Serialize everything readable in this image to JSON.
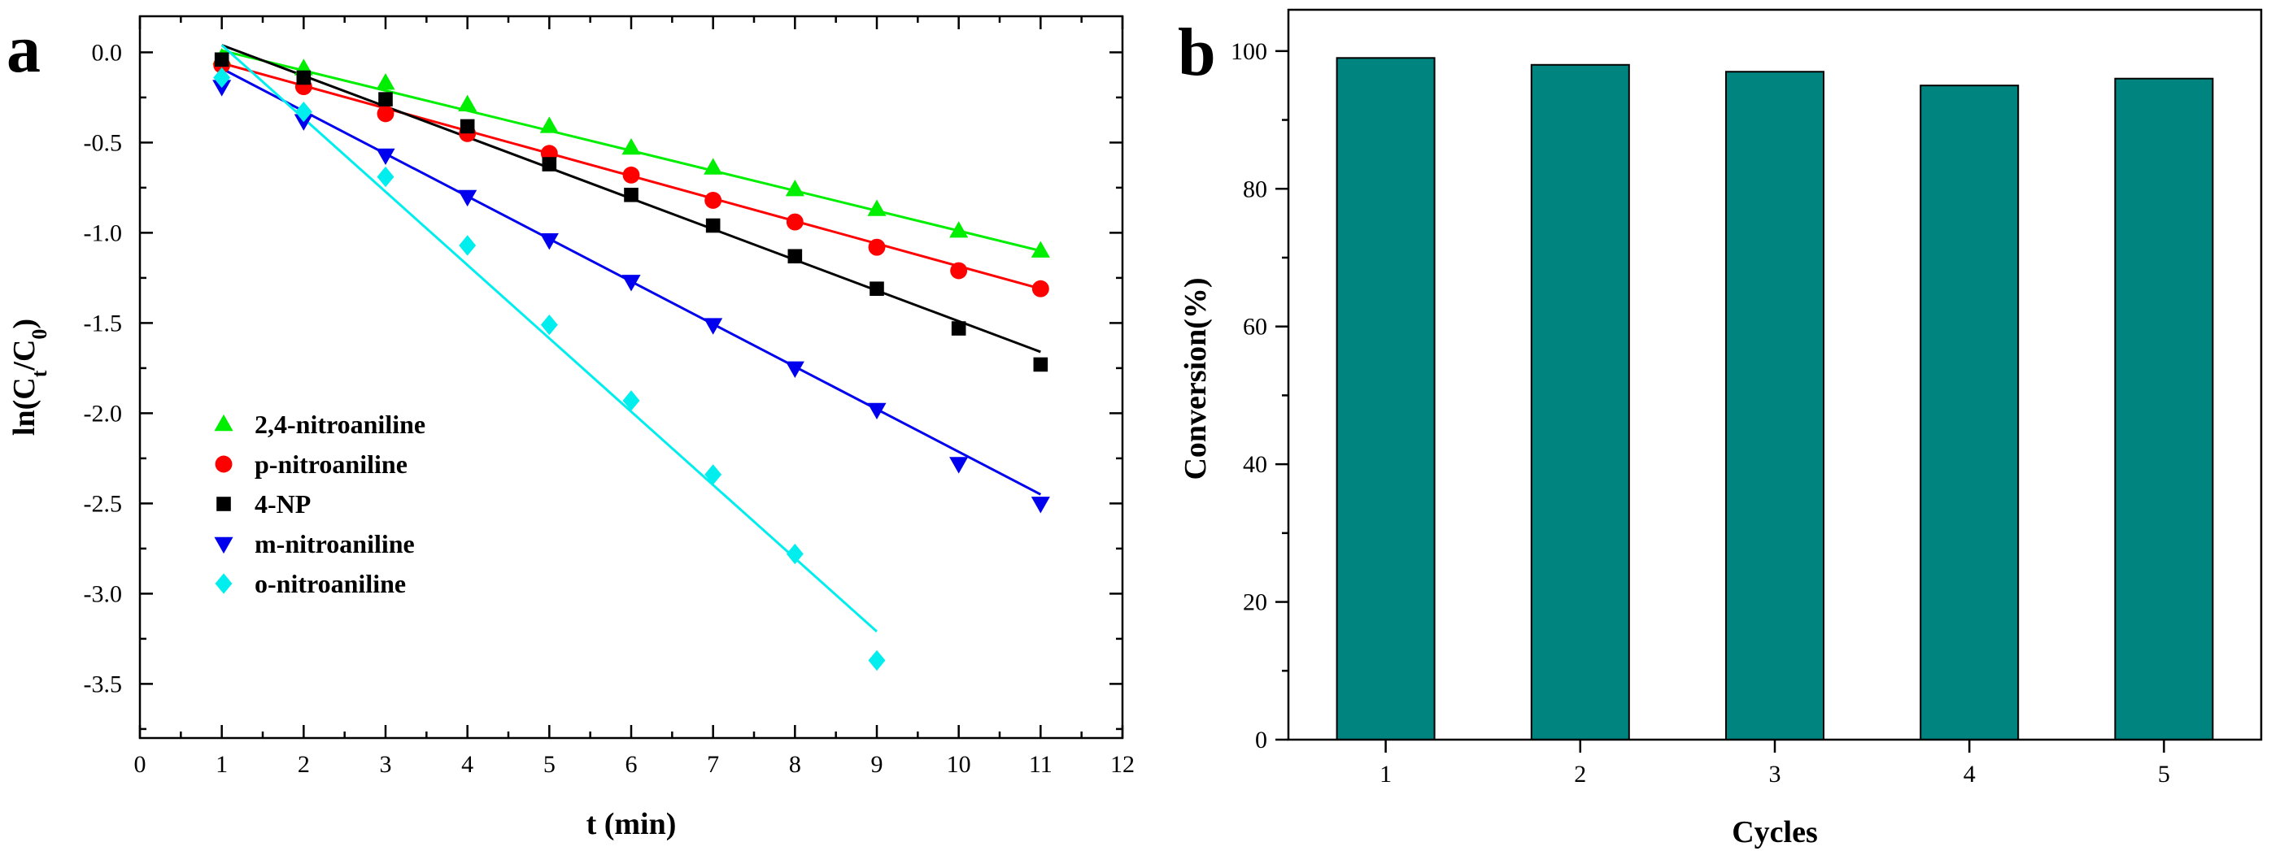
{
  "chart_data": [
    {
      "panel": "a",
      "type": "scatter",
      "xlabel": "t (min)",
      "ylabel": "ln(Ct/C0)",
      "xlim": [
        0,
        12
      ],
      "ylim": [
        -3.8,
        0.2
      ],
      "xticks": [
        0,
        1,
        2,
        3,
        4,
        5,
        6,
        7,
        8,
        9,
        10,
        11,
        12
      ],
      "yticks": [
        0.0,
        -0.5,
        -1.0,
        -1.5,
        -2.0,
        -2.5,
        -3.0,
        -3.5
      ],
      "ytick_labels": [
        "0.0",
        "-0.5",
        "-1.0",
        "-1.5",
        "-2.0",
        "-2.5",
        "-3.0",
        "-3.5"
      ],
      "legend_position": "center-left",
      "series": [
        {
          "name": "2,4-nitroaniline",
          "color": "#00ee00",
          "marker": "triangle-up",
          "x": [
            1,
            2,
            3,
            4,
            5,
            6,
            7,
            8,
            9,
            10,
            11
          ],
          "y": [
            -0.03,
            -0.09,
            -0.17,
            -0.29,
            -0.41,
            -0.53,
            -0.64,
            -0.76,
            -0.87,
            -0.99,
            -1.1
          ],
          "fit": {
            "x": [
              1,
              11
            ],
            "y": [
              0.01,
              -1.1
            ]
          }
        },
        {
          "name": "p-nitroaniline",
          "color": "#ff0000",
          "marker": "circle",
          "x": [
            1,
            2,
            3,
            4,
            5,
            6,
            7,
            8,
            9,
            10,
            11
          ],
          "y": [
            -0.07,
            -0.19,
            -0.34,
            -0.45,
            -0.56,
            -0.68,
            -0.82,
            -0.94,
            -1.08,
            -1.21,
            -1.31
          ],
          "fit": {
            "x": [
              1,
              11
            ],
            "y": [
              -0.06,
              -1.31
            ]
          }
        },
        {
          "name": "4-NP",
          "color": "#000000",
          "marker": "square",
          "x": [
            1,
            2,
            3,
            4,
            5,
            6,
            7,
            8,
            9,
            10,
            11
          ],
          "y": [
            -0.04,
            -0.14,
            -0.26,
            -0.41,
            -0.62,
            -0.79,
            -0.96,
            -1.13,
            -1.31,
            -1.53,
            -1.73
          ],
          "fit": {
            "x": [
              1,
              11
            ],
            "y": [
              0.04,
              -1.66
            ]
          }
        },
        {
          "name": "m-nitroaniline",
          "color": "#0000ee",
          "marker": "triangle-down",
          "x": [
            1,
            2,
            3,
            4,
            5,
            6,
            7,
            8,
            9,
            10,
            11
          ],
          "y": [
            -0.19,
            -0.38,
            -0.57,
            -0.8,
            -1.04,
            -1.27,
            -1.51,
            -1.75,
            -1.98,
            -2.28,
            -2.5
          ],
          "fit": {
            "x": [
              1,
              11
            ],
            "y": [
              -0.09,
              -2.45
            ]
          }
        },
        {
          "name": "o-nitroaniline",
          "color": "#00eeee",
          "marker": "diamond",
          "x": [
            1,
            2,
            3,
            4,
            5,
            6,
            7,
            8,
            9
          ],
          "y": [
            -0.14,
            -0.33,
            -0.69,
            -1.07,
            -1.51,
            -1.93,
            -2.34,
            -2.78,
            -3.37
          ],
          "fit": {
            "x": [
              1,
              9
            ],
            "y": [
              0.04,
              -3.21
            ]
          }
        }
      ]
    },
    {
      "panel": "b",
      "type": "bar",
      "xlabel": "Cycles",
      "ylabel": "Conversion(%)",
      "categories": [
        "1",
        "2",
        "3",
        "4",
        "5"
      ],
      "values": [
        99,
        98,
        97,
        95,
        96
      ],
      "ylim": [
        0,
        106
      ],
      "yticks": [
        0,
        20,
        40,
        60,
        80,
        100
      ],
      "bar_color": "#00847f"
    }
  ]
}
